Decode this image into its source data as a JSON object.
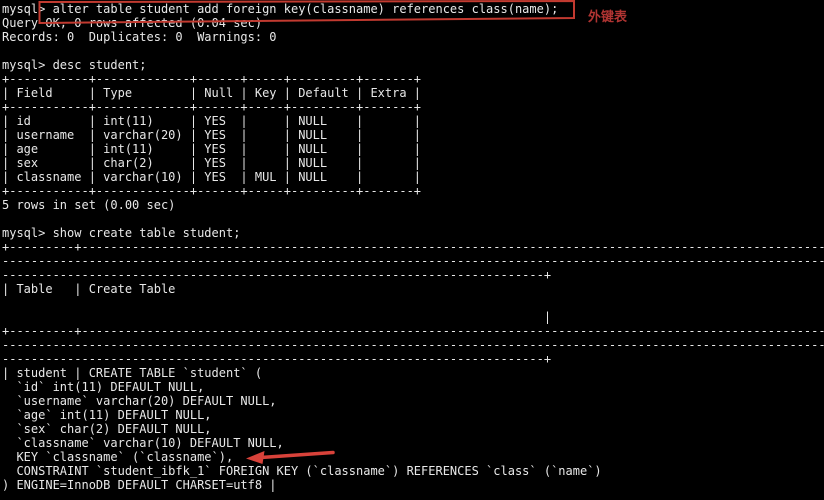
{
  "app": {
    "name": "mysql-terminal",
    "bg_color": "#000000",
    "fg_color": "#e8e8e8"
  },
  "annotations": {
    "label": "外键表",
    "label_color": "#b03432",
    "box_color": "#c23a30",
    "arrow_color": "#d8423a"
  },
  "commands": {
    "alter": "alter table student add foreign key(classname) references class(name);",
    "desc": "desc student;",
    "show_create": "show create table student;"
  },
  "results": {
    "alter_status": "Query OK, 0 rows affected (0.04 sec)",
    "alter_records": "Records: 0  Duplicates: 0  Warnings: 0",
    "desc_rowcount": "5 rows in set (0.00 sec)"
  },
  "desc_table": {
    "headers": [
      "Field",
      "Type",
      "Null",
      "Key",
      "Default",
      "Extra"
    ],
    "rows": [
      [
        "id",
        "int(11)",
        "YES",
        "",
        "NULL",
        ""
      ],
      [
        "username",
        "varchar(20)",
        "YES",
        "",
        "NULL",
        ""
      ],
      [
        "age",
        "int(11)",
        "YES",
        "",
        "NULL",
        ""
      ],
      [
        "sex",
        "char(2)",
        "YES",
        "",
        "NULL",
        ""
      ],
      [
        "classname",
        "varchar(10)",
        "YES",
        "MUL",
        "NULL",
        ""
      ]
    ]
  },
  "create_table": {
    "table": "student",
    "statement_lines": [
      "CREATE TABLE `student` (",
      "  `id` int(11) DEFAULT NULL,",
      "  `username` varchar(20) DEFAULT NULL,",
      "  `age` int(11) DEFAULT NULL,",
      "  `sex` char(2) DEFAULT NULL,",
      "  `classname` varchar(10) DEFAULT NULL,",
      "  KEY `classname` (`classname`),",
      "  CONSTRAINT `student_ibfk_1` FOREIGN KEY (`classname`) REFERENCES `class` (`name`)",
      ") ENGINE=InnoDB DEFAULT CHARSET=utf8 |"
    ]
  },
  "terminal": {
    "lines": [
      "mysql> alter table student add foreign key(classname) references class(name);",
      "Query OK, 0 rows affected (0.04 sec)",
      "Records: 0  Duplicates: 0  Warnings: 0",
      "",
      "mysql> desc student;",
      "+-----------+-------------+------+-----+---------+-------+",
      "| Field     | Type        | Null | Key | Default | Extra |",
      "+-----------+-------------+------+-----+---------+-------+",
      "| id        | int(11)     | YES  |     | NULL    |       |",
      "| username  | varchar(20) | YES  |     | NULL    |       |",
      "| age       | int(11)     | YES  |     | NULL    |       |",
      "| sex       | char(2)     | YES  |     | NULL    |       |",
      "| classname | varchar(10) | YES  | MUL | NULL    |       |",
      "+-----------+-------------+------+-----+---------+-------+",
      "5 rows in set (0.00 sec)",
      "",
      "mysql> show create table student;",
      "+---------+-------------------------------------------------------------------------------------------------------",
      "------------------------------------------------------------------------------------------------------------------",
      "---------------------------------------------------------------------------+",
      "| Table   | Create Table",
      "",
      "                                                                           |",
      "+---------+-------------------------------------------------------------------------------------------------------",
      "------------------------------------------------------------------------------------------------------------------",
      "---------------------------------------------------------------------------+",
      "| student | CREATE TABLE `student` (",
      "  `id` int(11) DEFAULT NULL,",
      "  `username` varchar(20) DEFAULT NULL,",
      "  `age` int(11) DEFAULT NULL,",
      "  `sex` char(2) DEFAULT NULL,",
      "  `classname` varchar(10) DEFAULT NULL,",
      "  KEY `classname` (`classname`),",
      "  CONSTRAINT `student_ibfk_1` FOREIGN KEY (`classname`) REFERENCES `class` (`name`)",
      ") ENGINE=InnoDB DEFAULT CHARSET=utf8 |"
    ]
  }
}
